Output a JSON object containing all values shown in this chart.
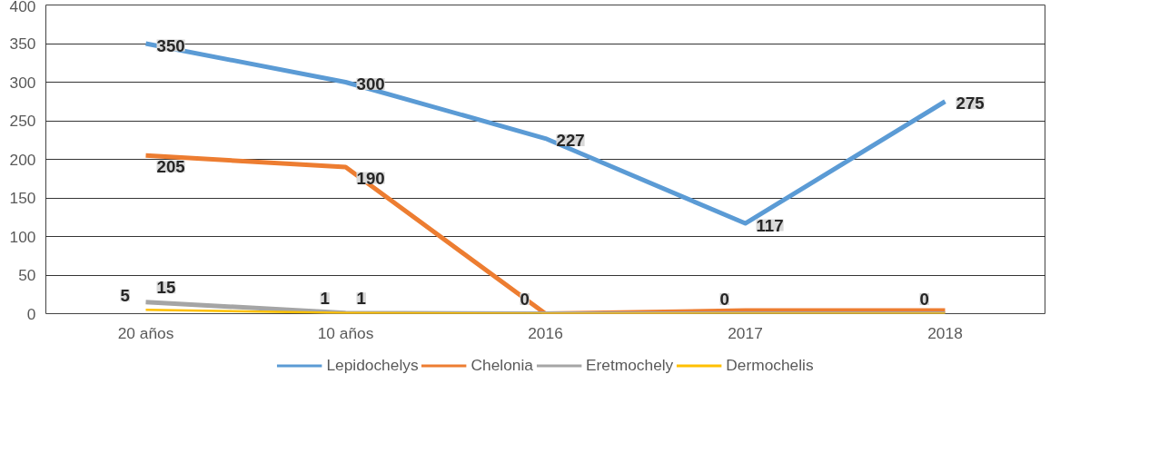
{
  "chart_data": {
    "type": "line",
    "categories": [
      "20 años",
      "10 años",
      "2016",
      "2017",
      "2018"
    ],
    "series": [
      {
        "name": "Lepidochelys",
        "color": "#5b9bd5",
        "values": [
          350,
          300,
          227,
          117,
          275
        ],
        "value_labels": [
          "350",
          "300",
          "227",
          "117",
          "275"
        ]
      },
      {
        "name": "Chelonia",
        "color": "#ed7d31",
        "values": [
          205,
          190,
          0,
          4,
          4
        ],
        "value_labels": [
          "205",
          "190",
          null,
          null,
          null
        ]
      },
      {
        "name": "Eretmochely",
        "color": "#a5a5a5",
        "values": [
          15,
          1,
          0,
          0,
          0
        ],
        "value_labels": [
          "15",
          "1",
          null,
          null,
          null
        ]
      },
      {
        "name": "Dermochelis",
        "color": "#ffc000",
        "values": [
          5,
          1,
          0,
          0,
          0
        ],
        "value_labels": [
          "5",
          "1",
          "0",
          "0",
          "0"
        ]
      }
    ],
    "ylim": [
      0,
      400
    ],
    "yticks": [
      0,
      50,
      100,
      150,
      200,
      250,
      300,
      350,
      400
    ],
    "grid": "y",
    "legend": "bottom",
    "marker": "none",
    "line_style": "solid"
  }
}
